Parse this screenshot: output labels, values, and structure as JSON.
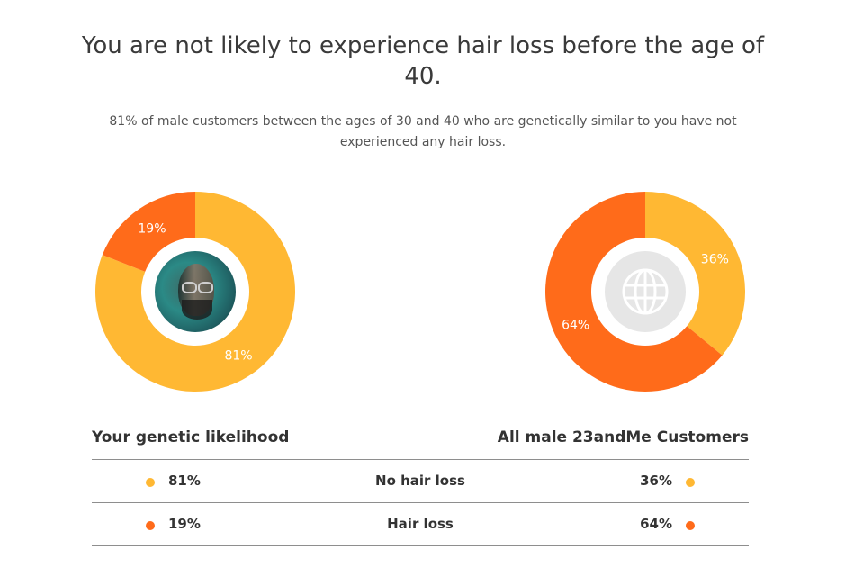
{
  "header": {
    "title": "You are not likely to experience hair loss before the age of 40.",
    "subtitle": "81% of male customers between the ages of 30 and 40 who are genetically similar to you have not experienced any hair loss."
  },
  "colors": {
    "no_hair_loss": "#FFB833",
    "hair_loss": "#FF6B1A",
    "globe_bg": "#E6E6E6"
  },
  "chart_data": [
    {
      "type": "pie",
      "title": "Your genetic likelihood",
      "categories": [
        "No hair loss",
        "Hair loss"
      ],
      "values": [
        81,
        19
      ],
      "labels": [
        "81%",
        "19%"
      ],
      "center_icon": "user-avatar"
    },
    {
      "type": "pie",
      "title": "All male 23andMe Customers",
      "categories": [
        "No hair loss",
        "Hair loss"
      ],
      "values": [
        36,
        64
      ],
      "labels": [
        "36%",
        "64%"
      ],
      "center_icon": "globe-icon"
    }
  ],
  "table": {
    "left_header": "Your genetic likelihood",
    "right_header": "All male 23andMe Customers",
    "rows": [
      {
        "category": "No hair loss",
        "left": "81%",
        "right": "36%"
      },
      {
        "category": "Hair loss",
        "left": "19%",
        "right": "64%"
      }
    ]
  }
}
